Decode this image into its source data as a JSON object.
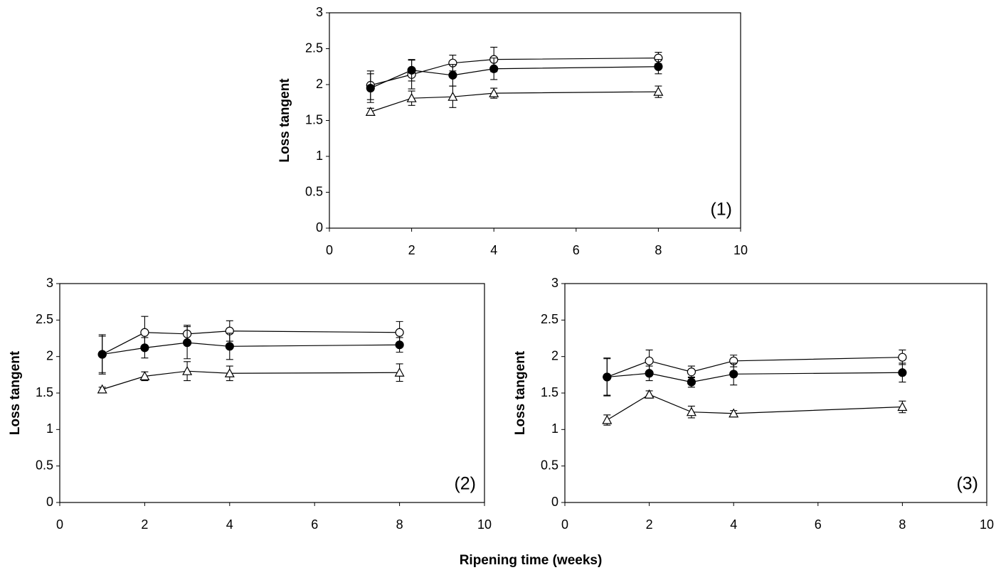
{
  "xlabel": "Ripening time (weeks)",
  "chart_data": [
    {
      "type": "line",
      "ylabel": "Loss tangent",
      "annotation": "(1)",
      "x": [
        1,
        2,
        3,
        4,
        8
      ],
      "xlim": [
        0,
        10
      ],
      "xticks": [
        0,
        2,
        4,
        6,
        8,
        10
      ],
      "ylim": [
        0,
        3
      ],
      "yticks": [
        0,
        0.5,
        1,
        1.5,
        2,
        2.5,
        3
      ],
      "series": [
        {
          "marker": "circle",
          "color": "#000",
          "fill": "#fff",
          "values": [
            1.99,
            2.14,
            2.3,
            2.35,
            2.37
          ],
          "errors": [
            0.2,
            0.2,
            0.11,
            0.17,
            0.08
          ]
        },
        {
          "marker": "circle",
          "color": "#000",
          "fill": "#000",
          "values": [
            1.95,
            2.2,
            2.13,
            2.22,
            2.25
          ],
          "errors": [
            0.2,
            0.15,
            0.15,
            0.15,
            0.1
          ]
        },
        {
          "marker": "triangle",
          "color": "#000",
          "fill": "#fff",
          "values": [
            1.62,
            1.81,
            1.83,
            1.88,
            1.9
          ],
          "errors": [
            0.05,
            0.1,
            0.15,
            0.07,
            0.08
          ]
        }
      ]
    },
    {
      "type": "line",
      "ylabel": "Loss tangent",
      "annotation": "(2)",
      "x": [
        1,
        2,
        3,
        4,
        8
      ],
      "xlim": [
        0,
        10
      ],
      "xticks": [
        0,
        2,
        4,
        6,
        8,
        10
      ],
      "ylim": [
        0,
        3
      ],
      "yticks": [
        0,
        0.5,
        1,
        1.5,
        2,
        2.5,
        3
      ],
      "series": [
        {
          "marker": "circle",
          "color": "#000",
          "fill": "#fff",
          "values": [
            2.03,
            2.33,
            2.31,
            2.35,
            2.33
          ],
          "errors": [
            0.25,
            0.22,
            0.12,
            0.14,
            0.15
          ]
        },
        {
          "marker": "circle",
          "color": "#000",
          "fill": "#000",
          "values": [
            2.03,
            2.12,
            2.19,
            2.14,
            2.16
          ],
          "errors": [
            0.27,
            0.14,
            0.22,
            0.18,
            0.1
          ]
        },
        {
          "marker": "triangle",
          "color": "#000",
          "fill": "#fff",
          "values": [
            1.55,
            1.73,
            1.8,
            1.77,
            1.78
          ],
          "errors": [
            0.03,
            0.06,
            0.13,
            0.1,
            0.12
          ]
        }
      ]
    },
    {
      "type": "line",
      "ylabel": "Loss tangent",
      "annotation": "(3)",
      "x": [
        1,
        2,
        3,
        4,
        8
      ],
      "xlim": [
        0,
        10
      ],
      "xticks": [
        0,
        2,
        4,
        6,
        8,
        10
      ],
      "ylim": [
        0,
        3
      ],
      "yticks": [
        0,
        0.5,
        1,
        1.5,
        2,
        2.5,
        3
      ],
      "series": [
        {
          "marker": "circle",
          "color": "#000",
          "fill": "#fff",
          "values": [
            1.72,
            1.94,
            1.79,
            1.94,
            1.99
          ],
          "errors": [
            0.25,
            0.15,
            0.08,
            0.08,
            0.1
          ]
        },
        {
          "marker": "circle",
          "color": "#000",
          "fill": "#000",
          "values": [
            1.72,
            1.77,
            1.65,
            1.76,
            1.78
          ],
          "errors": [
            0.26,
            0.1,
            0.07,
            0.15,
            0.13
          ]
        },
        {
          "marker": "triangle",
          "color": "#000",
          "fill": "#fff",
          "values": [
            1.13,
            1.48,
            1.24,
            1.22,
            1.31
          ],
          "errors": [
            0.07,
            0.05,
            0.08,
            0.04,
            0.08
          ]
        }
      ]
    }
  ]
}
